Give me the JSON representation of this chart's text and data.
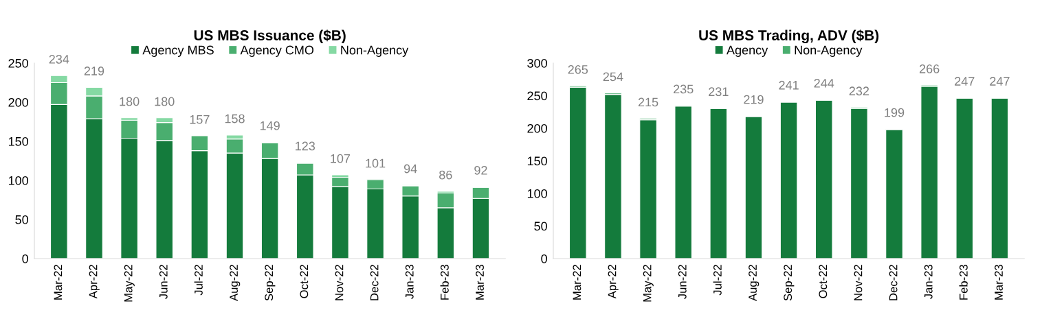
{
  "chart_data": [
    {
      "type": "bar",
      "title": "US MBS Issuance ($B)",
      "stacked": true,
      "legend": "top",
      "grid": false,
      "categories": [
        "Mar-22",
        "Apr-22",
        "May-22",
        "Jun-22",
        "Jul-22",
        "Aug-22",
        "Sep-22",
        "Oct-22",
        "Nov-22",
        "Dec-22",
        "Jan-23",
        "Feb-23",
        "Mar-23"
      ],
      "series": [
        {
          "name": "Agency MBS",
          "color": "#147b3c",
          "values": [
            197,
            179,
            154,
            151,
            138,
            135,
            128,
            107,
            92,
            89,
            80,
            65,
            77
          ]
        },
        {
          "name": "Agency CMO",
          "color": "#4aae6f",
          "values": [
            28,
            29,
            23,
            23,
            19,
            18,
            20,
            15,
            12,
            12,
            13,
            19,
            14
          ]
        },
        {
          "name": "Non-Agency",
          "color": "#85d9a3",
          "values": [
            9,
            11,
            3,
            6,
            0,
            5,
            1,
            1,
            3,
            0,
            1,
            2,
            1
          ]
        }
      ],
      "totals": [
        "234",
        "219",
        "180",
        "180",
        "157",
        "158",
        "149",
        "123",
        "107",
        "101",
        "94",
        "86",
        "92"
      ],
      "ylim": [
        0,
        250
      ],
      "yticks": [
        0,
        50,
        100,
        150,
        200,
        250
      ]
    },
    {
      "type": "bar",
      "title": "US MBS Trading, ADV ($B)",
      "stacked": true,
      "legend": "top",
      "grid": false,
      "categories": [
        "Mar-22",
        "Apr-22",
        "May-22",
        "Jun-22",
        "Jul-22",
        "Aug-22",
        "Sep-22",
        "Oct-22",
        "Nov-22",
        "Dec-22",
        "Jan-23",
        "Feb-23",
        "Mar-23"
      ],
      "series": [
        {
          "name": "Agency",
          "color": "#147b3c",
          "values": [
            263,
            252,
            213,
            234,
            230,
            218,
            240,
            243,
            230,
            198,
            264,
            246,
            246
          ]
        },
        {
          "name": "Non-Agency",
          "color": "#4aae6f",
          "values": [
            2,
            2,
            2,
            1,
            1,
            1,
            1,
            1,
            2,
            1,
            2,
            1,
            1
          ]
        }
      ],
      "totals": [
        "265",
        "254",
        "215",
        "235",
        "231",
        "219",
        "241",
        "244",
        "232",
        "199",
        "266",
        "247",
        "247"
      ],
      "ylim": [
        0,
        300
      ],
      "yticks": [
        0,
        50,
        100,
        150,
        200,
        250,
        300
      ]
    }
  ]
}
